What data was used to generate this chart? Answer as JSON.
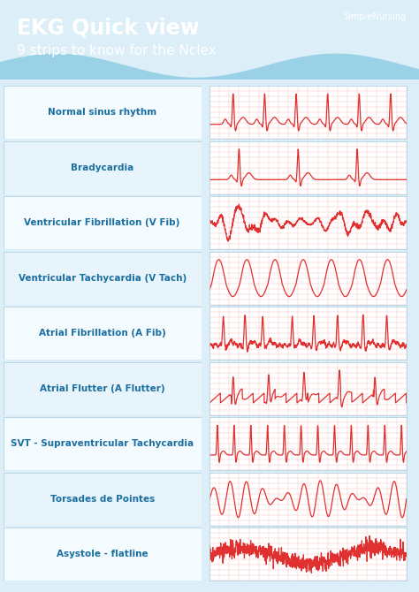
{
  "title_line1": "EKG Quick view",
  "title_line2": "9 strips to know for the Nclex",
  "brand": "SimpleNursing",
  "header_bg": "#2a8cbb",
  "body_bg": "#dceef7",
  "row_bg_light": "#f0f8fd",
  "row_bg_alt": "#e2f0f8",
  "label_color": "#1a6fa0",
  "ekg_color": "#e03030",
  "grid_color": "#f5b8b8",
  "rows": [
    "Normal sinus rhythm",
    "Bradycardia",
    "Ventricular Fibrillation (V Fib)",
    "Ventricular Tachycardia (V Tach)",
    "Atrial Fibrillation (A Fib)",
    "Atrial Flutter (A Flutter)",
    "SVT - Supraventricular Tachycardia",
    "Torsades de Pointes",
    "Asystole - flatline"
  ]
}
